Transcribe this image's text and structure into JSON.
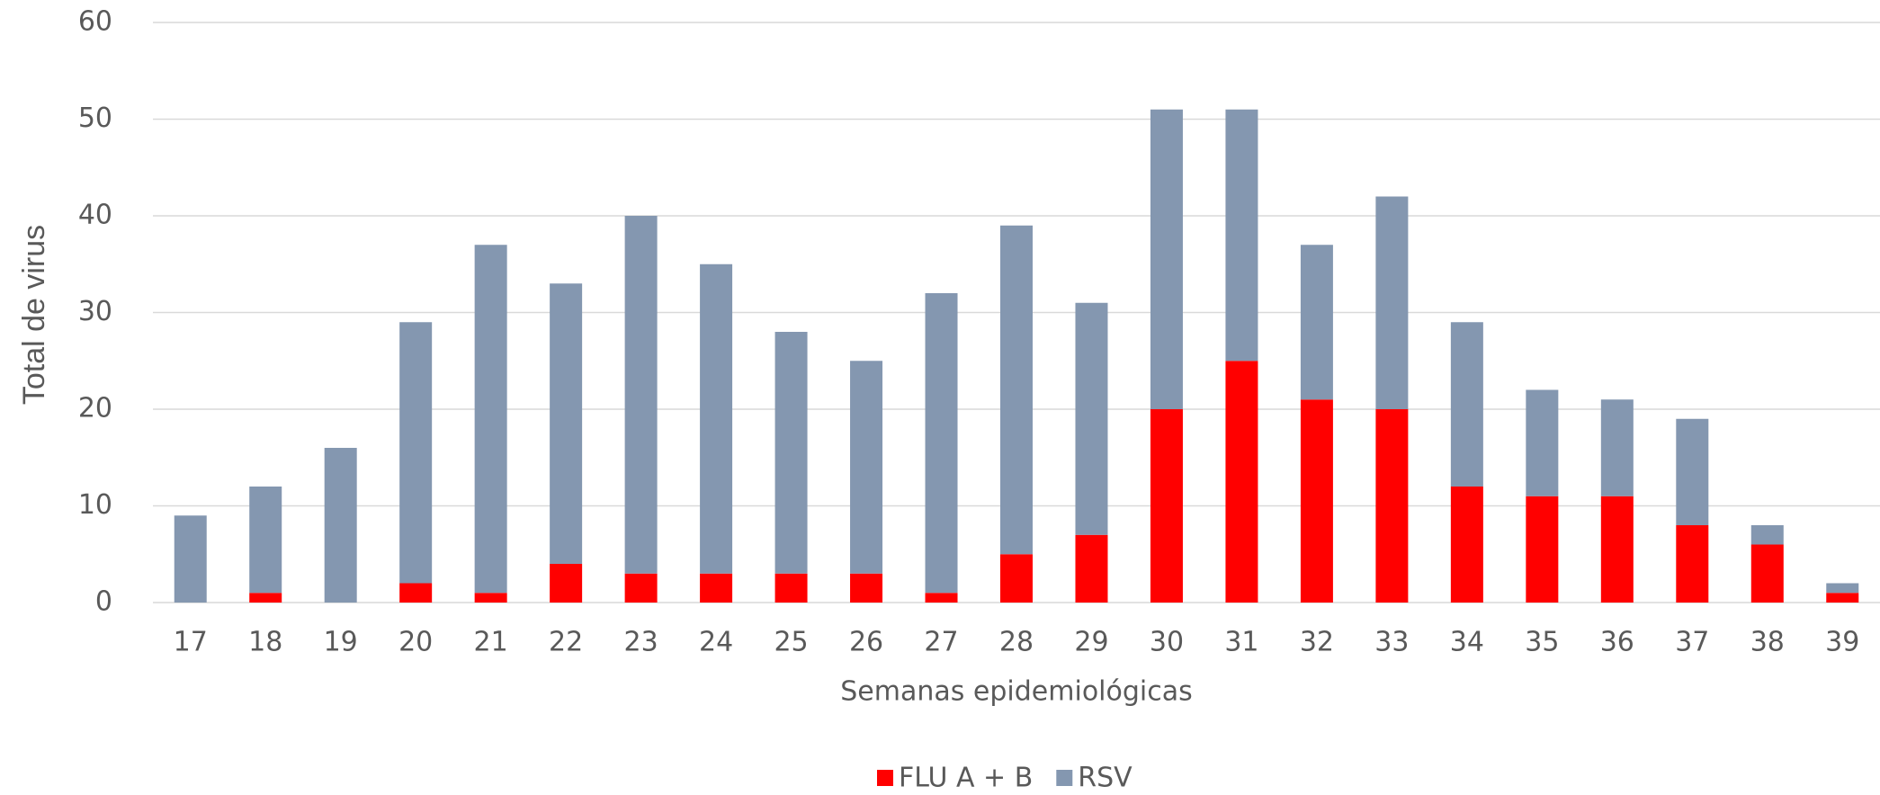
{
  "chart_data": {
    "type": "stacked_bar",
    "y_label": "Total de virus",
    "x_label": "Semanas epidemiológicas",
    "categories": [
      "17",
      "18",
      "19",
      "20",
      "21",
      "22",
      "23",
      "24",
      "25",
      "26",
      "27",
      "28",
      "29",
      "30",
      "31",
      "32",
      "33",
      "34",
      "35",
      "36",
      "37",
      "38",
      "39"
    ],
    "series": [
      {
        "name": "FLU A + B",
        "color": "#ff0000",
        "values": [
          0,
          1,
          0,
          2,
          1,
          4,
          3,
          3,
          3,
          3,
          1,
          5,
          7,
          20,
          25,
          21,
          20,
          12,
          11,
          11,
          8,
          6,
          1
        ]
      },
      {
        "name": "RSV",
        "color": "#8497b0",
        "values": [
          9,
          11,
          16,
          27,
          36,
          29,
          37,
          32,
          25,
          22,
          31,
          34,
          24,
          31,
          26,
          16,
          22,
          17,
          11,
          10,
          11,
          2,
          1
        ]
      }
    ],
    "ylim": [
      0,
      60
    ],
    "yticks": [
      0,
      10,
      20,
      30,
      40,
      50,
      60
    ],
    "grid": true,
    "legend": "bottom"
  }
}
